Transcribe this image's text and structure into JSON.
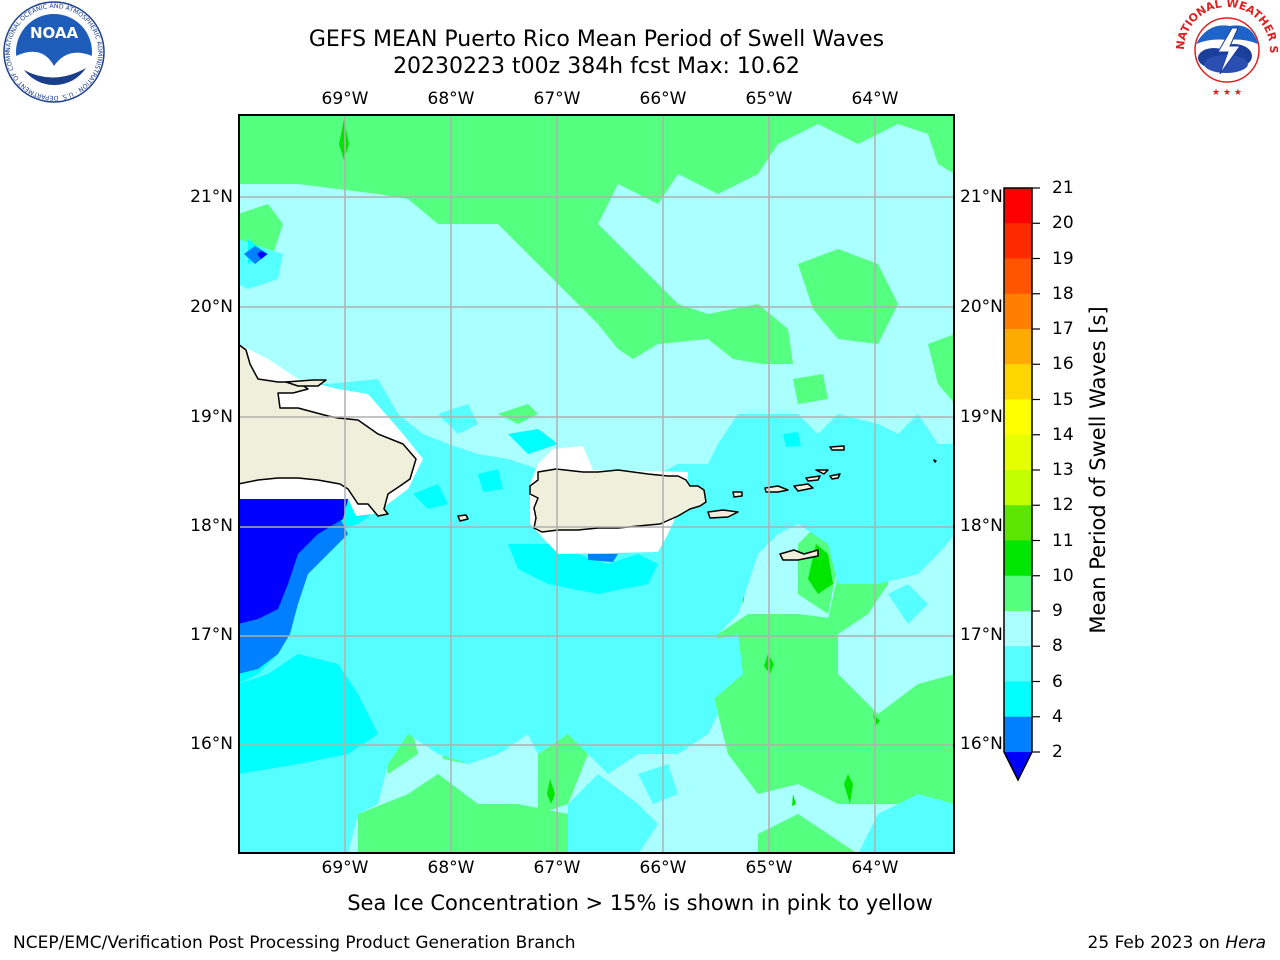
{
  "title_line1": "GEFS MEAN Puerto Rico Mean Period of Swell Waves",
  "title_line2": "20230223 t00z 384h fcst   Max: 10.62",
  "longitude_labels": [
    "69°W",
    "68°W",
    "67°W",
    "66°W",
    "65°W",
    "64°W"
  ],
  "latitude_labels": [
    "21°N",
    "20°N",
    "19°N",
    "18°N",
    "17°N",
    "16°N"
  ],
  "map_extent": {
    "lon_min": -70.0,
    "lon_max": -63.25,
    "lat_min": 15.0,
    "lat_max": 21.75
  },
  "colorbar": {
    "title": "Mean Period of Swell Waves [s]",
    "ticks": [
      "21",
      "20",
      "19",
      "18",
      "17",
      "16",
      "15",
      "14",
      "13",
      "12",
      "11",
      "10",
      "9",
      "8",
      "6",
      "4",
      "2"
    ],
    "bands": [
      {
        "range": "20-21",
        "color": "#ff0000"
      },
      {
        "range": "19-20",
        "color": "#ff2a00"
      },
      {
        "range": "18-19",
        "color": "#ff5500"
      },
      {
        "range": "17-18",
        "color": "#ff8000"
      },
      {
        "range": "16-17",
        "color": "#ffaa00"
      },
      {
        "range": "15-16",
        "color": "#ffd500"
      },
      {
        "range": "14-15",
        "color": "#ffff00"
      },
      {
        "range": "13-14",
        "color": "#e6ff00"
      },
      {
        "range": "12-13",
        "color": "#c2ff00"
      },
      {
        "range": "11-12",
        "color": "#5ae600"
      },
      {
        "range": "10-11",
        "color": "#00e600"
      },
      {
        "range": "9-10",
        "color": "#55ff80"
      },
      {
        "range": "8-9",
        "color": "#aaffff"
      },
      {
        "range": "6-8",
        "color": "#55ffff"
      },
      {
        "range": "4-6",
        "color": "#00ffff"
      },
      {
        "range": "2-4",
        "color": "#0080ff"
      },
      {
        "range": "<2",
        "color": "#0000ff"
      }
    ]
  },
  "colors": {
    "swell_9_10": "#55ff80",
    "swell_8_9": "#aaffff",
    "swell_6_8": "#55ffff",
    "swell_4_6": "#00ffff",
    "swell_2_4": "#0080ff",
    "swell_lt2": "#0000ff",
    "land": "#efefdc",
    "grid": "#b0b0b0"
  },
  "note": "Sea Ice Concentration > 15% is shown in pink to yellow",
  "footer_left": "NCEP/EMC/Verification Post Processing Product Generation Branch",
  "footer_date": "25 Feb 2023 on ",
  "footer_machine": "Hera",
  "logos": {
    "noaa_text": "NOAA",
    "noaa_ring": "NATIONAL OCEANIC AND ATMOSPHERIC ADMINISTRATION · U.S. DEPARTMENT OF COMMERCE",
    "nws_ring": "NATIONAL WEATHER SERVICE"
  }
}
